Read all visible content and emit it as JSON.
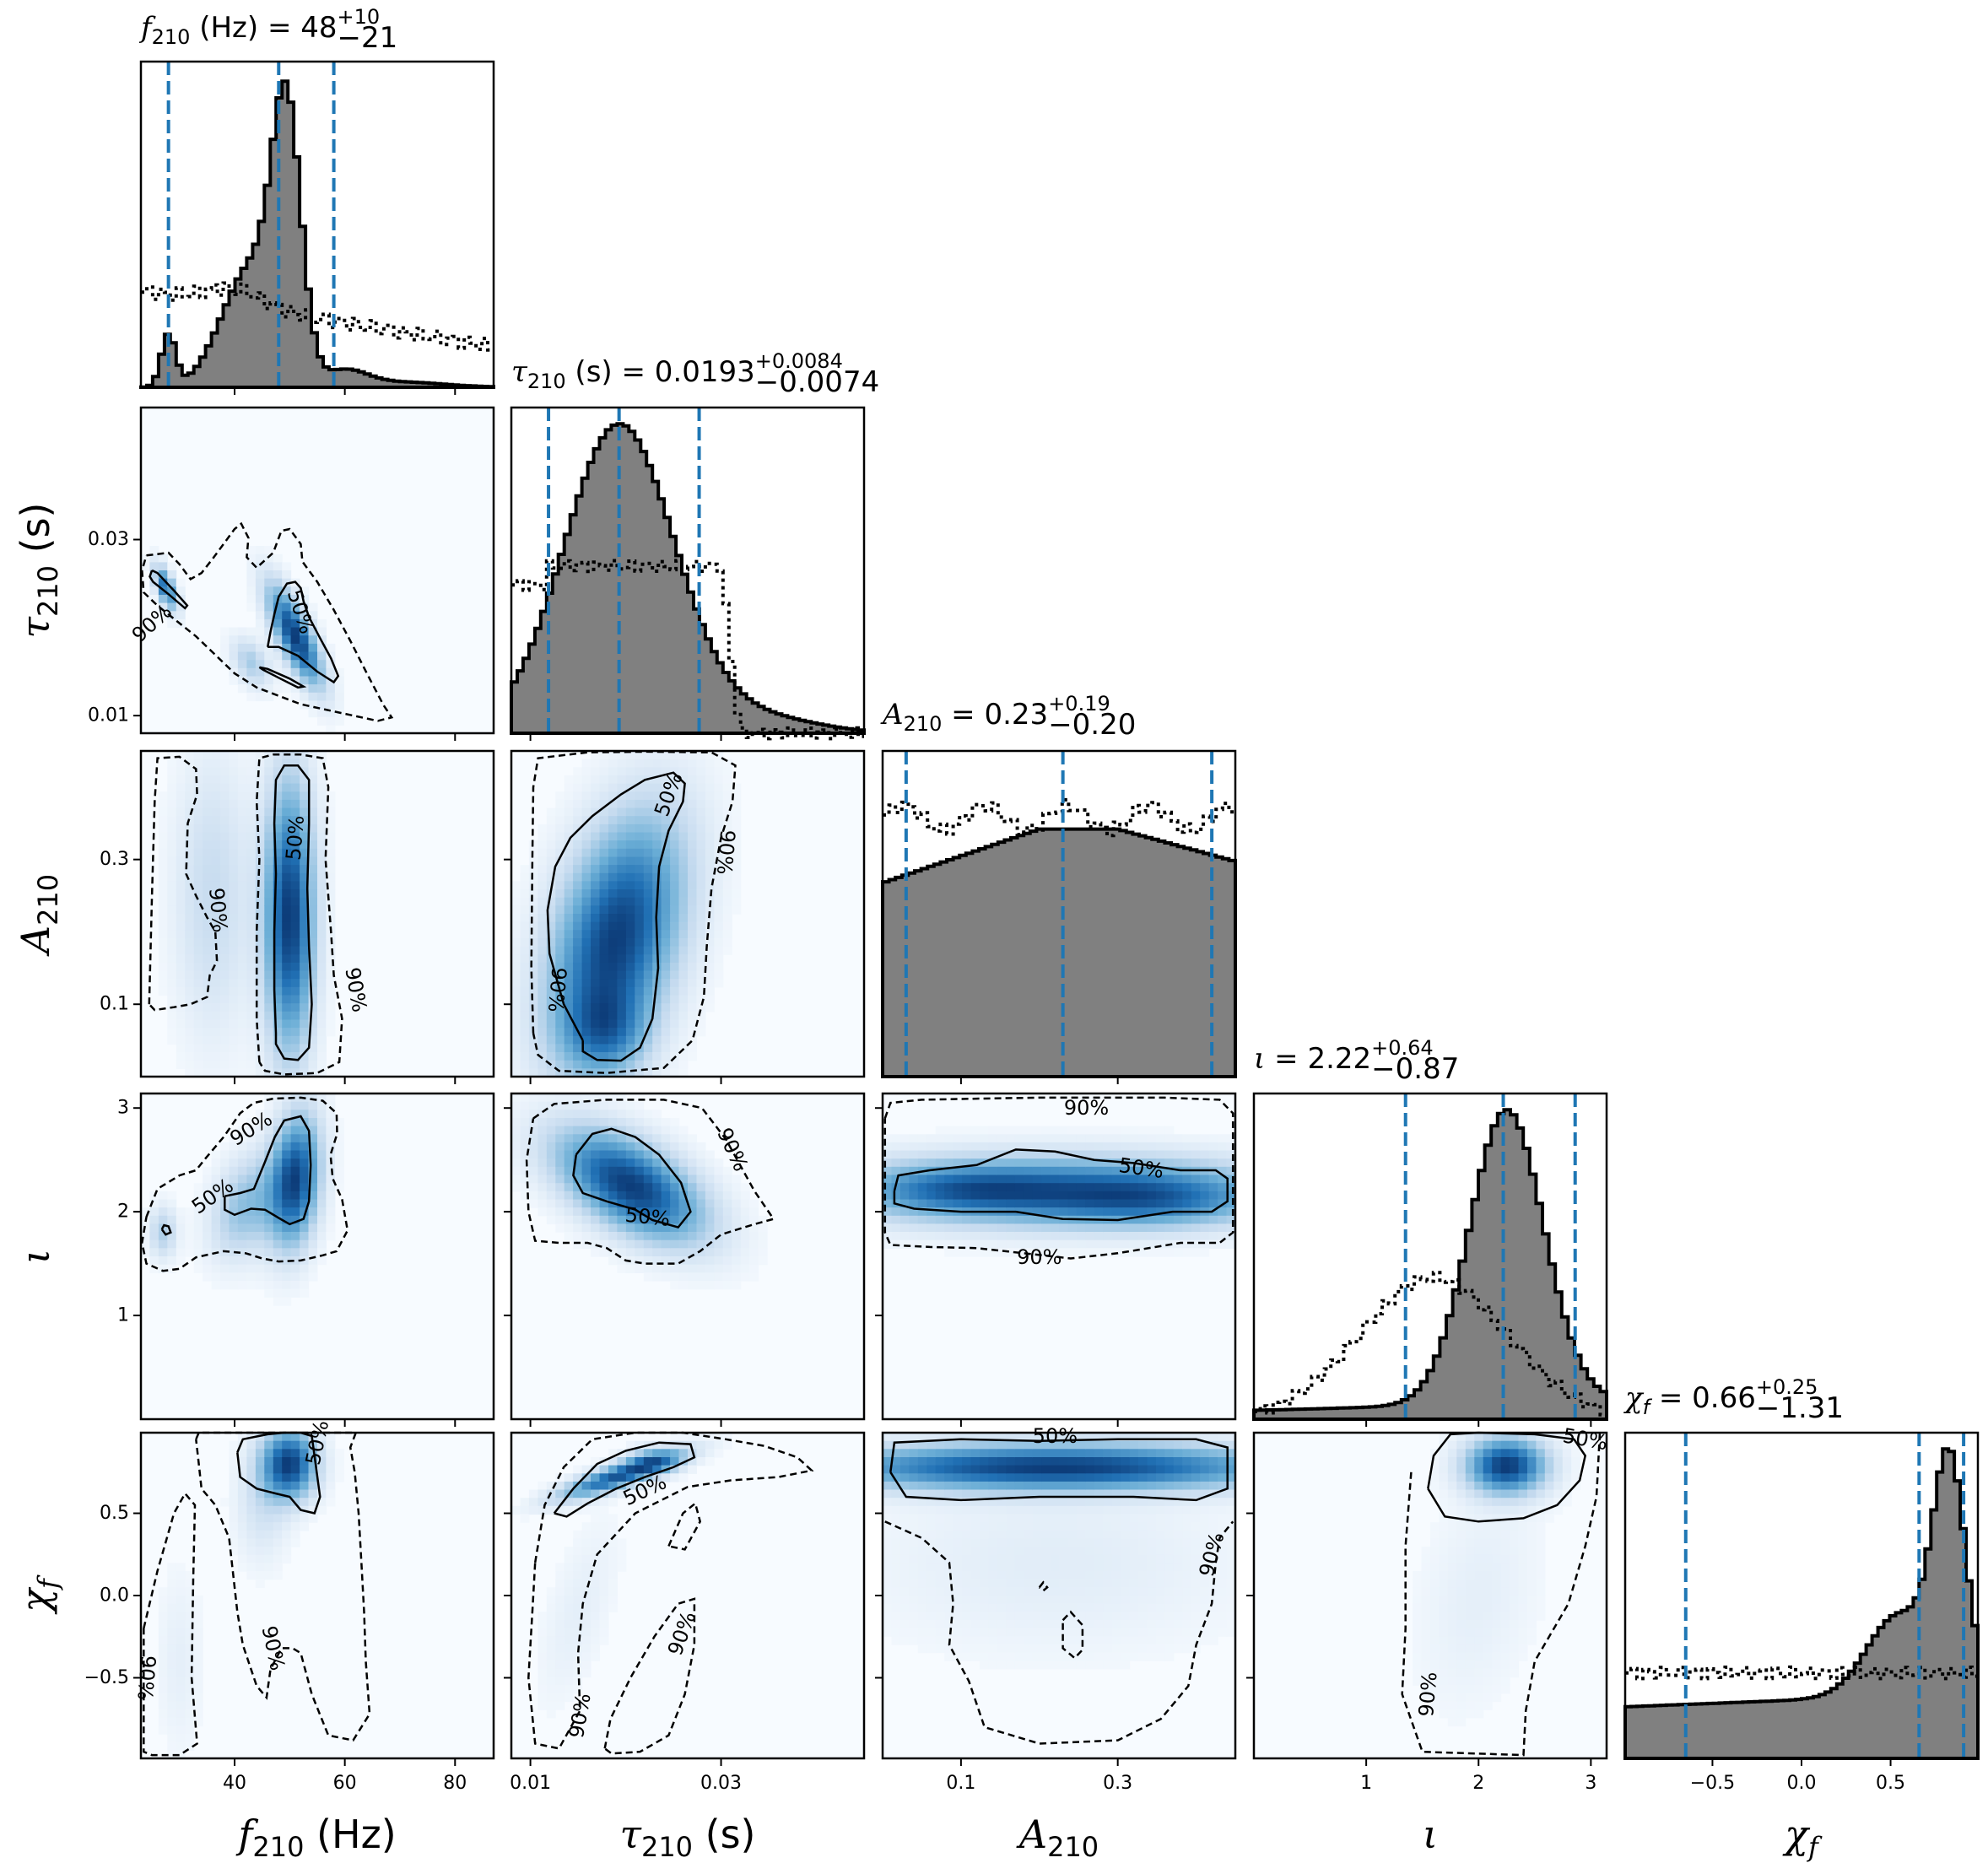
{
  "chart_data": {
    "type": "corner",
    "parameters": [
      {
        "id": "f210",
        "symbol": "f",
        "sub": "210",
        "unit": "(Hz)",
        "range": [
          23,
          87
        ],
        "ticks": [
          40,
          60,
          80
        ],
        "tick_labels": [
          "40",
          "60",
          "80"
        ],
        "title": {
          "prefix": "(Hz) = ",
          "median": "48",
          "plus": "+10",
          "minus": "−21"
        },
        "quantiles": [
          28,
          48,
          58
        ]
      },
      {
        "id": "tau210",
        "symbol": "τ",
        "sub": "210",
        "unit": "(s)",
        "range": [
          0.008,
          0.045
        ],
        "ticks": [
          0.01,
          0.03
        ],
        "tick_labels": [
          "0.01",
          "0.03"
        ],
        "title": {
          "prefix": "(s) = ",
          "median": "0.0193",
          "plus": "+0.0084",
          "minus": "−0.0074"
        },
        "quantiles": [
          0.0119,
          0.0193,
          0.0277
        ]
      },
      {
        "id": "A210",
        "symbol": "A",
        "sub": "210",
        "unit": "",
        "range": [
          0.0,
          0.45
        ],
        "ticks": [
          0.1,
          0.3
        ],
        "tick_labels": [
          "0.1",
          "0.3"
        ],
        "title": {
          "prefix": "= ",
          "median": "0.23",
          "plus": "+0.19",
          "minus": "−0.20"
        },
        "quantiles": [
          0.03,
          0.23,
          0.42
        ]
      },
      {
        "id": "iota",
        "symbol": "ι",
        "sub": "",
        "unit": "",
        "range": [
          0.0,
          3.14
        ],
        "ticks": [
          1,
          2,
          3
        ],
        "tick_labels": [
          "1",
          "2",
          "3"
        ],
        "title": {
          "prefix": "= ",
          "median": "2.22",
          "plus": "+0.64",
          "minus": "−0.87"
        },
        "quantiles": [
          1.35,
          2.22,
          2.86
        ]
      },
      {
        "id": "chif",
        "symbol": "χ",
        "sub": "f",
        "unit": "",
        "range": [
          -0.99,
          0.99
        ],
        "ticks": [
          -0.5,
          0.0,
          0.5
        ],
        "tick_labels": [
          "−0.5",
          "0.0",
          "0.5"
        ],
        "title": {
          "prefix": "= ",
          "median": "0.66",
          "plus": "+0.25",
          "minus": "−1.31"
        },
        "quantiles": [
          -0.65,
          0.66,
          0.91
        ]
      }
    ],
    "contour_levels": [
      "50%",
      "90%"
    ],
    "histogram_style": {
      "posterior_fill": "#808080",
      "posterior_edge": "#000000",
      "prior_style": "dotted",
      "quantile_color": "#1f77b4"
    },
    "density_colormap": "Blues",
    "label_placement": {
      "p10": [
        {
          "text": "90%",
          "x": 25,
          "y": 0.0205,
          "rot": -42
        },
        {
          "text": "50%",
          "x": 52,
          "y": 0.0218,
          "rot": 72
        }
      ],
      "p20": [
        {
          "text": "50%",
          "x": 51,
          "y": 0.33,
          "rot": -85
        },
        {
          "text": "90%",
          "x": 37,
          "y": 0.23,
          "rot": 85
        },
        {
          "text": "90%",
          "x": 62,
          "y": 0.12,
          "rot": 80
        }
      ],
      "p21": [
        {
          "text": "50%",
          "x": 0.0245,
          "y": 0.39,
          "rot": -70
        },
        {
          "text": "90%",
          "x": 0.0305,
          "y": 0.31,
          "rot": 95
        },
        {
          "text": "90%",
          "x": 0.0128,
          "y": 0.12,
          "rot": 95
        }
      ],
      "p30": [
        {
          "text": "90%",
          "x": 43,
          "y": 2.8,
          "rot": -32
        },
        {
          "text": "50%",
          "x": 36,
          "y": 2.15,
          "rot": -35
        }
      ],
      "p31": [
        {
          "text": "90%",
          "x": 0.0312,
          "y": 2.6,
          "rot": 65
        },
        {
          "text": "50%",
          "x": 0.0223,
          "y": 1.95,
          "rot": 6
        }
      ],
      "p32": [
        {
          "text": "90%",
          "x": 0.26,
          "y": 3.0,
          "rot": 0
        },
        {
          "text": "50%",
          "x": 0.33,
          "y": 2.42,
          "rot": 8
        },
        {
          "text": "90%",
          "x": 0.2,
          "y": 1.56,
          "rot": 0
        }
      ],
      "p40": [
        {
          "text": "50%",
          "x": 55,
          "y": 0.93,
          "rot": -78
        },
        {
          "text": "90%",
          "x": 47,
          "y": -0.32,
          "rot": 78
        },
        {
          "text": "90%",
          "x": 24,
          "y": -0.5,
          "rot": 95
        }
      ],
      "p41": [
        {
          "text": "50%",
          "x": 0.022,
          "y": 0.64,
          "rot": -25
        },
        {
          "text": "90%",
          "x": 0.0259,
          "y": -0.23,
          "rot": -70
        },
        {
          "text": "90%",
          "x": 0.0152,
          "y": -0.73,
          "rot": -80
        }
      ],
      "p42": [
        {
          "text": "50%",
          "x": 0.22,
          "y": 0.97,
          "rot": 0
        },
        {
          "text": "90%",
          "x": 0.42,
          "y": 0.25,
          "rot": -75
        }
      ],
      "p43": [
        {
          "text": "50%",
          "x": 2.95,
          "y": 0.95,
          "rot": 10
        },
        {
          "text": "90%",
          "x": 1.55,
          "y": -0.6,
          "rot": -85
        }
      ]
    }
  }
}
